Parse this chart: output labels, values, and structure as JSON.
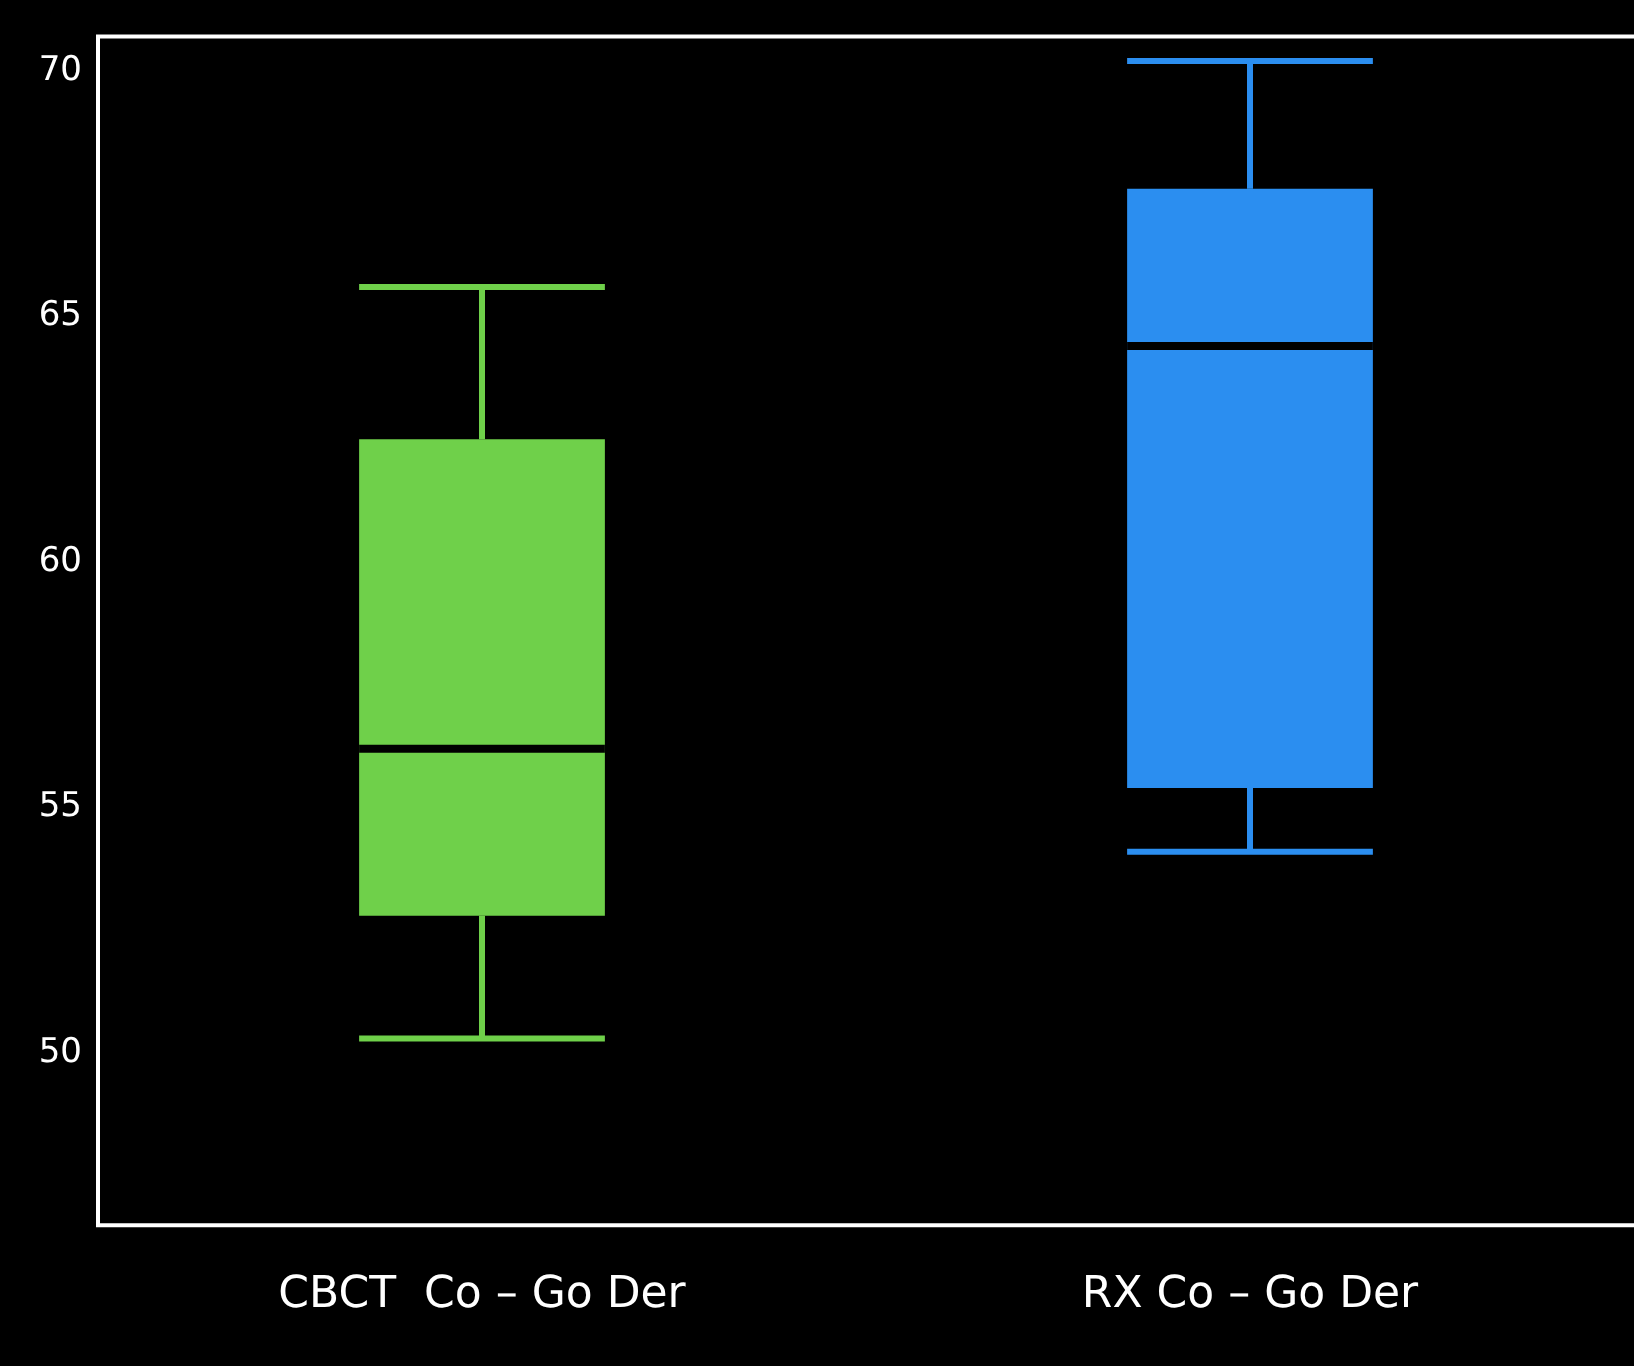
{
  "chart_data": {
    "type": "box",
    "categories": [
      "CBCT  Co – Go Der",
      "RX Co – Go Der"
    ],
    "boxes": [
      {
        "low": 50.3,
        "q1": 52.8,
        "median": 56.2,
        "q3": 62.5,
        "high": 65.6
      },
      {
        "low": 54.1,
        "q1": 55.4,
        "median": 64.4,
        "q3": 67.6,
        "high": 70.2
      }
    ],
    "colors": [
      "#6fd04a",
      "#2b8ef0"
    ],
    "ylim": [
      46.5,
      70.7
    ],
    "yticks": [
      50,
      55,
      60,
      65,
      70
    ],
    "legend": false
  }
}
